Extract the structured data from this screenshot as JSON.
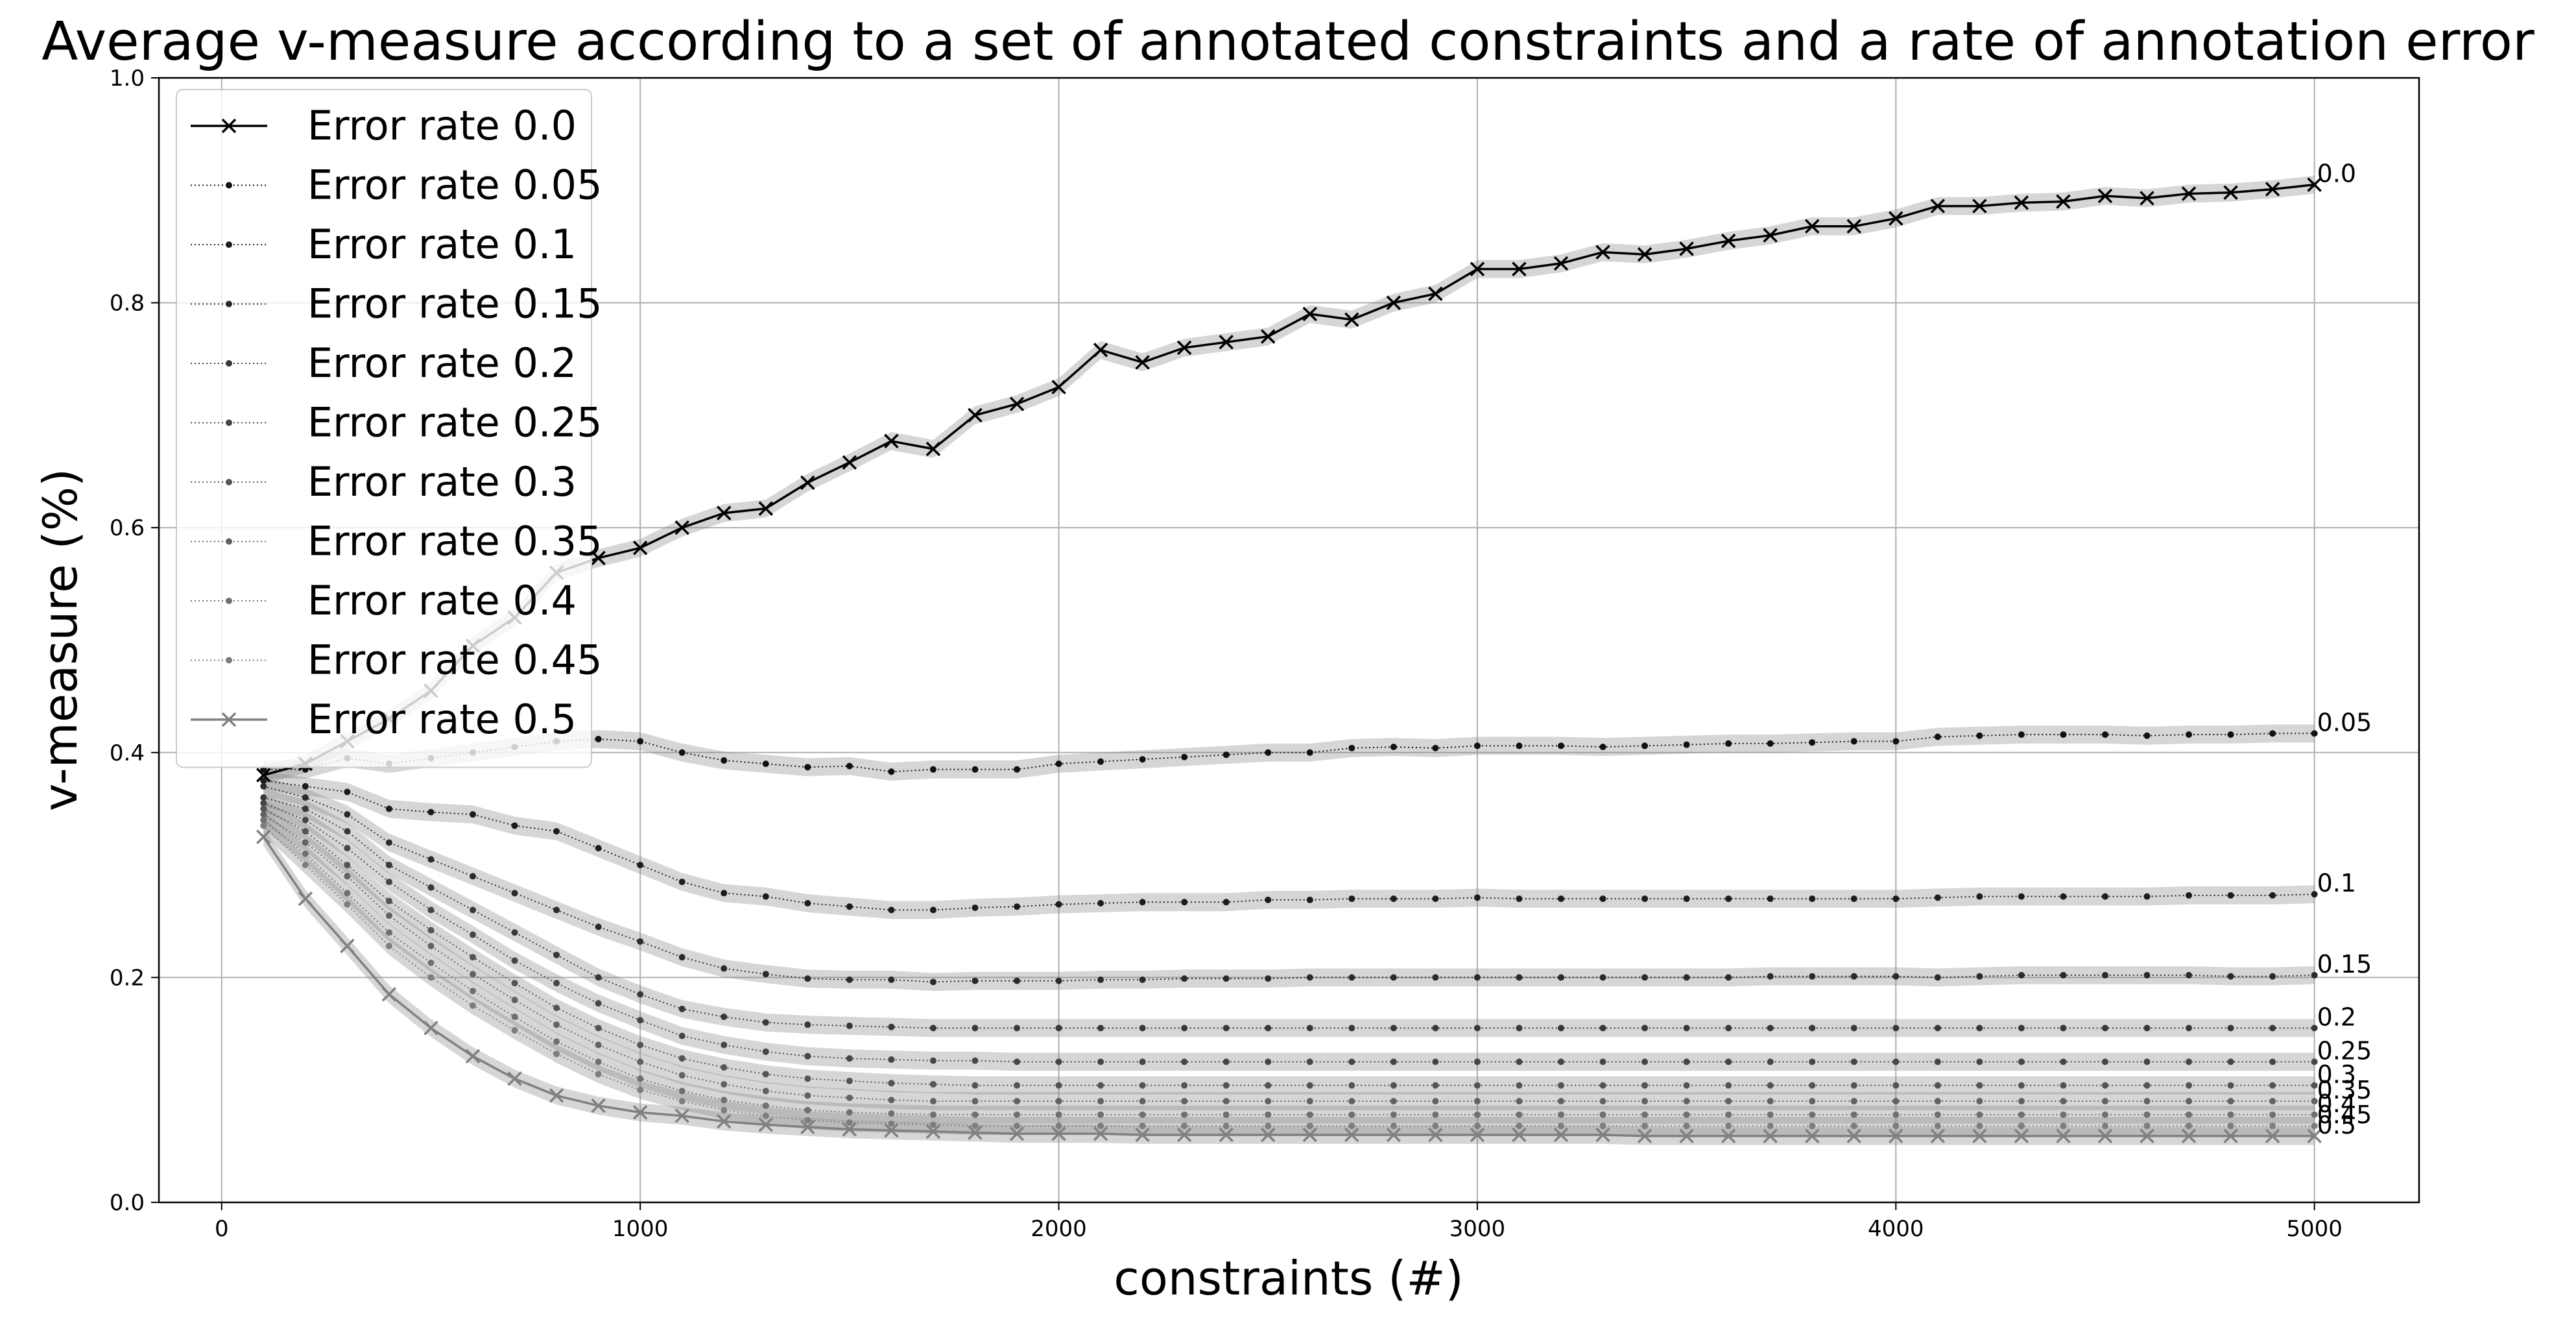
{
  "chart_data": {
    "type": "line",
    "title": "Average v-measure according to a set of annotated constraints and a rate of annotation error",
    "xlabel": "constraints (#)",
    "ylabel": "v-measure (%)",
    "xlim": [
      -150,
      5250
    ],
    "ylim": [
      0.0,
      1.0
    ],
    "xticks": [
      0,
      1000,
      2000,
      3000,
      4000,
      5000
    ],
    "yticks": [
      0.0,
      0.2,
      0.4,
      0.6,
      0.8,
      1.0
    ],
    "xtick_labels": [
      "0",
      "1000",
      "2000",
      "3000",
      "4000",
      "5000"
    ],
    "ytick_labels": [
      "0.0",
      "0.2",
      "0.4",
      "0.6",
      "0.8",
      "1.0"
    ],
    "grid": true,
    "legend_position": "top-left",
    "x": [
      100,
      200,
      300,
      400,
      500,
      600,
      700,
      800,
      900,
      1000,
      1100,
      1200,
      1300,
      1400,
      1500,
      1600,
      1700,
      1800,
      1900,
      2000,
      2100,
      2200,
      2300,
      2400,
      2500,
      2600,
      2700,
      2800,
      2900,
      3000,
      3100,
      3200,
      3300,
      3400,
      3500,
      3600,
      3700,
      3800,
      3900,
      4000,
      4100,
      4200,
      4300,
      4400,
      4500,
      4600,
      4700,
      4800,
      4900,
      5000
    ],
    "series": [
      {
        "name": "Error rate 0.0",
        "end_label": "0.0",
        "color": "#000000",
        "marker": "x",
        "style": "solid",
        "values": [
          0.38,
          0.39,
          0.41,
          0.43,
          0.455,
          0.495,
          0.52,
          0.56,
          0.573,
          0.582,
          0.6,
          0.613,
          0.617,
          0.64,
          0.658,
          0.677,
          0.67,
          0.7,
          0.71,
          0.725,
          0.758,
          0.747,
          0.76,
          0.765,
          0.77,
          0.79,
          0.785,
          0.8,
          0.808,
          0.83,
          0.83,
          0.835,
          0.845,
          0.843,
          0.848,
          0.855,
          0.86,
          0.868,
          0.868,
          0.875,
          0.886,
          0.886,
          0.889,
          0.89,
          0.895,
          0.893,
          0.897,
          0.898,
          0.901,
          0.905
        ]
      },
      {
        "name": "Error rate 0.05",
        "end_label": "0.05",
        "color": "#111111",
        "marker": "dot",
        "style": "dotted",
        "values": [
          0.385,
          0.385,
          0.395,
          0.39,
          0.395,
          0.4,
          0.405,
          0.41,
          0.412,
          0.41,
          0.4,
          0.393,
          0.39,
          0.387,
          0.388,
          0.383,
          0.385,
          0.385,
          0.385,
          0.39,
          0.392,
          0.394,
          0.396,
          0.398,
          0.4,
          0.4,
          0.404,
          0.405,
          0.404,
          0.406,
          0.406,
          0.406,
          0.405,
          0.406,
          0.407,
          0.408,
          0.408,
          0.409,
          0.41,
          0.41,
          0.414,
          0.415,
          0.416,
          0.416,
          0.416,
          0.415,
          0.416,
          0.416,
          0.417,
          0.417
        ]
      },
      {
        "name": "Error rate 0.1",
        "end_label": "0.1",
        "color": "#1c1c1c",
        "marker": "dot",
        "style": "dotted",
        "values": [
          0.375,
          0.37,
          0.365,
          0.35,
          0.347,
          0.345,
          0.335,
          0.33,
          0.315,
          0.3,
          0.285,
          0.275,
          0.272,
          0.266,
          0.263,
          0.26,
          0.26,
          0.262,
          0.263,
          0.265,
          0.266,
          0.267,
          0.267,
          0.267,
          0.269,
          0.269,
          0.27,
          0.27,
          0.27,
          0.271,
          0.27,
          0.27,
          0.27,
          0.27,
          0.27,
          0.27,
          0.27,
          0.27,
          0.27,
          0.27,
          0.271,
          0.272,
          0.272,
          0.272,
          0.272,
          0.272,
          0.273,
          0.273,
          0.273,
          0.274
        ]
      },
      {
        "name": "Error rate 0.15",
        "end_label": "0.15",
        "color": "#2a2a2a",
        "marker": "dot",
        "style": "dotted",
        "values": [
          0.37,
          0.36,
          0.345,
          0.32,
          0.305,
          0.29,
          0.275,
          0.26,
          0.245,
          0.232,
          0.218,
          0.208,
          0.203,
          0.199,
          0.198,
          0.198,
          0.196,
          0.197,
          0.197,
          0.197,
          0.198,
          0.198,
          0.199,
          0.199,
          0.199,
          0.2,
          0.2,
          0.2,
          0.2,
          0.2,
          0.2,
          0.2,
          0.2,
          0.2,
          0.2,
          0.2,
          0.201,
          0.201,
          0.201,
          0.201,
          0.2,
          0.201,
          0.202,
          0.202,
          0.202,
          0.202,
          0.202,
          0.201,
          0.201,
          0.202
        ]
      },
      {
        "name": "Error rate 0.2",
        "end_label": "0.2",
        "color": "#383838",
        "marker": "dot",
        "style": "dotted",
        "values": [
          0.36,
          0.35,
          0.33,
          0.3,
          0.28,
          0.26,
          0.24,
          0.22,
          0.2,
          0.185,
          0.172,
          0.165,
          0.16,
          0.158,
          0.157,
          0.156,
          0.155,
          0.155,
          0.155,
          0.155,
          0.155,
          0.155,
          0.155,
          0.155,
          0.155,
          0.155,
          0.155,
          0.155,
          0.155,
          0.155,
          0.155,
          0.155,
          0.155,
          0.155,
          0.155,
          0.155,
          0.155,
          0.155,
          0.155,
          0.155,
          0.155,
          0.155,
          0.155,
          0.155,
          0.155,
          0.155,
          0.155,
          0.155,
          0.155,
          0.155
        ]
      },
      {
        "name": "Error rate 0.25",
        "end_label": "0.25",
        "color": "#464646",
        "marker": "dot",
        "style": "dotted",
        "values": [
          0.355,
          0.34,
          0.315,
          0.285,
          0.26,
          0.238,
          0.215,
          0.195,
          0.177,
          0.162,
          0.148,
          0.14,
          0.134,
          0.13,
          0.128,
          0.127,
          0.126,
          0.126,
          0.125,
          0.125,
          0.125,
          0.125,
          0.125,
          0.125,
          0.125,
          0.125,
          0.125,
          0.125,
          0.125,
          0.125,
          0.125,
          0.125,
          0.125,
          0.125,
          0.125,
          0.125,
          0.125,
          0.125,
          0.125,
          0.125,
          0.125,
          0.125,
          0.125,
          0.125,
          0.125,
          0.125,
          0.125,
          0.125,
          0.125,
          0.125
        ]
      },
      {
        "name": "Error rate 0.3",
        "end_label": "0.3",
        "color": "#545454",
        "marker": "dot",
        "style": "dotted",
        "values": [
          0.35,
          0.33,
          0.3,
          0.268,
          0.242,
          0.218,
          0.195,
          0.173,
          0.155,
          0.14,
          0.128,
          0.12,
          0.114,
          0.11,
          0.108,
          0.106,
          0.105,
          0.104,
          0.104,
          0.104,
          0.104,
          0.104,
          0.104,
          0.104,
          0.104,
          0.104,
          0.104,
          0.104,
          0.104,
          0.104,
          0.104,
          0.104,
          0.104,
          0.104,
          0.104,
          0.104,
          0.104,
          0.104,
          0.104,
          0.104,
          0.104,
          0.104,
          0.104,
          0.104,
          0.104,
          0.104,
          0.104,
          0.104,
          0.104,
          0.104
        ]
      },
      {
        "name": "Error rate 0.35",
        "end_label": "0.35",
        "color": "#626262",
        "marker": "dot",
        "style": "dotted",
        "values": [
          0.345,
          0.32,
          0.29,
          0.255,
          0.228,
          0.203,
          0.18,
          0.158,
          0.14,
          0.125,
          0.113,
          0.105,
          0.099,
          0.095,
          0.093,
          0.091,
          0.09,
          0.09,
          0.09,
          0.09,
          0.09,
          0.09,
          0.09,
          0.09,
          0.09,
          0.09,
          0.09,
          0.09,
          0.09,
          0.09,
          0.09,
          0.09,
          0.09,
          0.09,
          0.09,
          0.09,
          0.09,
          0.09,
          0.09,
          0.09,
          0.09,
          0.09,
          0.09,
          0.09,
          0.09,
          0.09,
          0.09,
          0.09,
          0.09,
          0.09
        ]
      },
      {
        "name": "Error rate 0.4",
        "end_label": "0.4",
        "color": "#707070",
        "marker": "dot",
        "style": "dotted",
        "values": [
          0.34,
          0.31,
          0.275,
          0.24,
          0.213,
          0.188,
          0.165,
          0.143,
          0.125,
          0.11,
          0.099,
          0.091,
          0.086,
          0.082,
          0.08,
          0.079,
          0.078,
          0.078,
          0.078,
          0.078,
          0.078,
          0.078,
          0.078,
          0.078,
          0.078,
          0.078,
          0.078,
          0.078,
          0.078,
          0.078,
          0.078,
          0.078,
          0.078,
          0.078,
          0.078,
          0.078,
          0.078,
          0.078,
          0.078,
          0.078,
          0.078,
          0.078,
          0.078,
          0.078,
          0.078,
          0.078,
          0.078,
          0.078,
          0.078,
          0.078
        ]
      },
      {
        "name": "Error rate 0.45",
        "end_label": "0.45",
        "color": "#7e7e7e",
        "marker": "dot",
        "style": "dotted",
        "values": [
          0.335,
          0.3,
          0.265,
          0.228,
          0.2,
          0.175,
          0.153,
          0.132,
          0.114,
          0.1,
          0.09,
          0.082,
          0.077,
          0.073,
          0.071,
          0.07,
          0.069,
          0.068,
          0.068,
          0.068,
          0.068,
          0.068,
          0.068,
          0.068,
          0.068,
          0.068,
          0.068,
          0.068,
          0.068,
          0.068,
          0.068,
          0.068,
          0.068,
          0.068,
          0.068,
          0.068,
          0.068,
          0.068,
          0.068,
          0.068,
          0.068,
          0.068,
          0.068,
          0.068,
          0.068,
          0.068,
          0.068,
          0.068,
          0.068,
          0.068
        ]
      },
      {
        "name": "Error rate 0.5",
        "end_label": "0.5",
        "color": "#808080",
        "marker": "x",
        "style": "solid",
        "values": [
          0.325,
          0.27,
          0.228,
          0.185,
          0.155,
          0.13,
          0.11,
          0.095,
          0.086,
          0.08,
          0.077,
          0.072,
          0.069,
          0.067,
          0.065,
          0.064,
          0.063,
          0.062,
          0.061,
          0.061,
          0.061,
          0.06,
          0.06,
          0.06,
          0.06,
          0.06,
          0.06,
          0.06,
          0.06,
          0.06,
          0.06,
          0.06,
          0.06,
          0.059,
          0.059,
          0.059,
          0.059,
          0.059,
          0.059,
          0.059,
          0.059,
          0.059,
          0.059,
          0.059,
          0.059,
          0.059,
          0.059,
          0.059,
          0.059,
          0.059
        ]
      }
    ]
  }
}
